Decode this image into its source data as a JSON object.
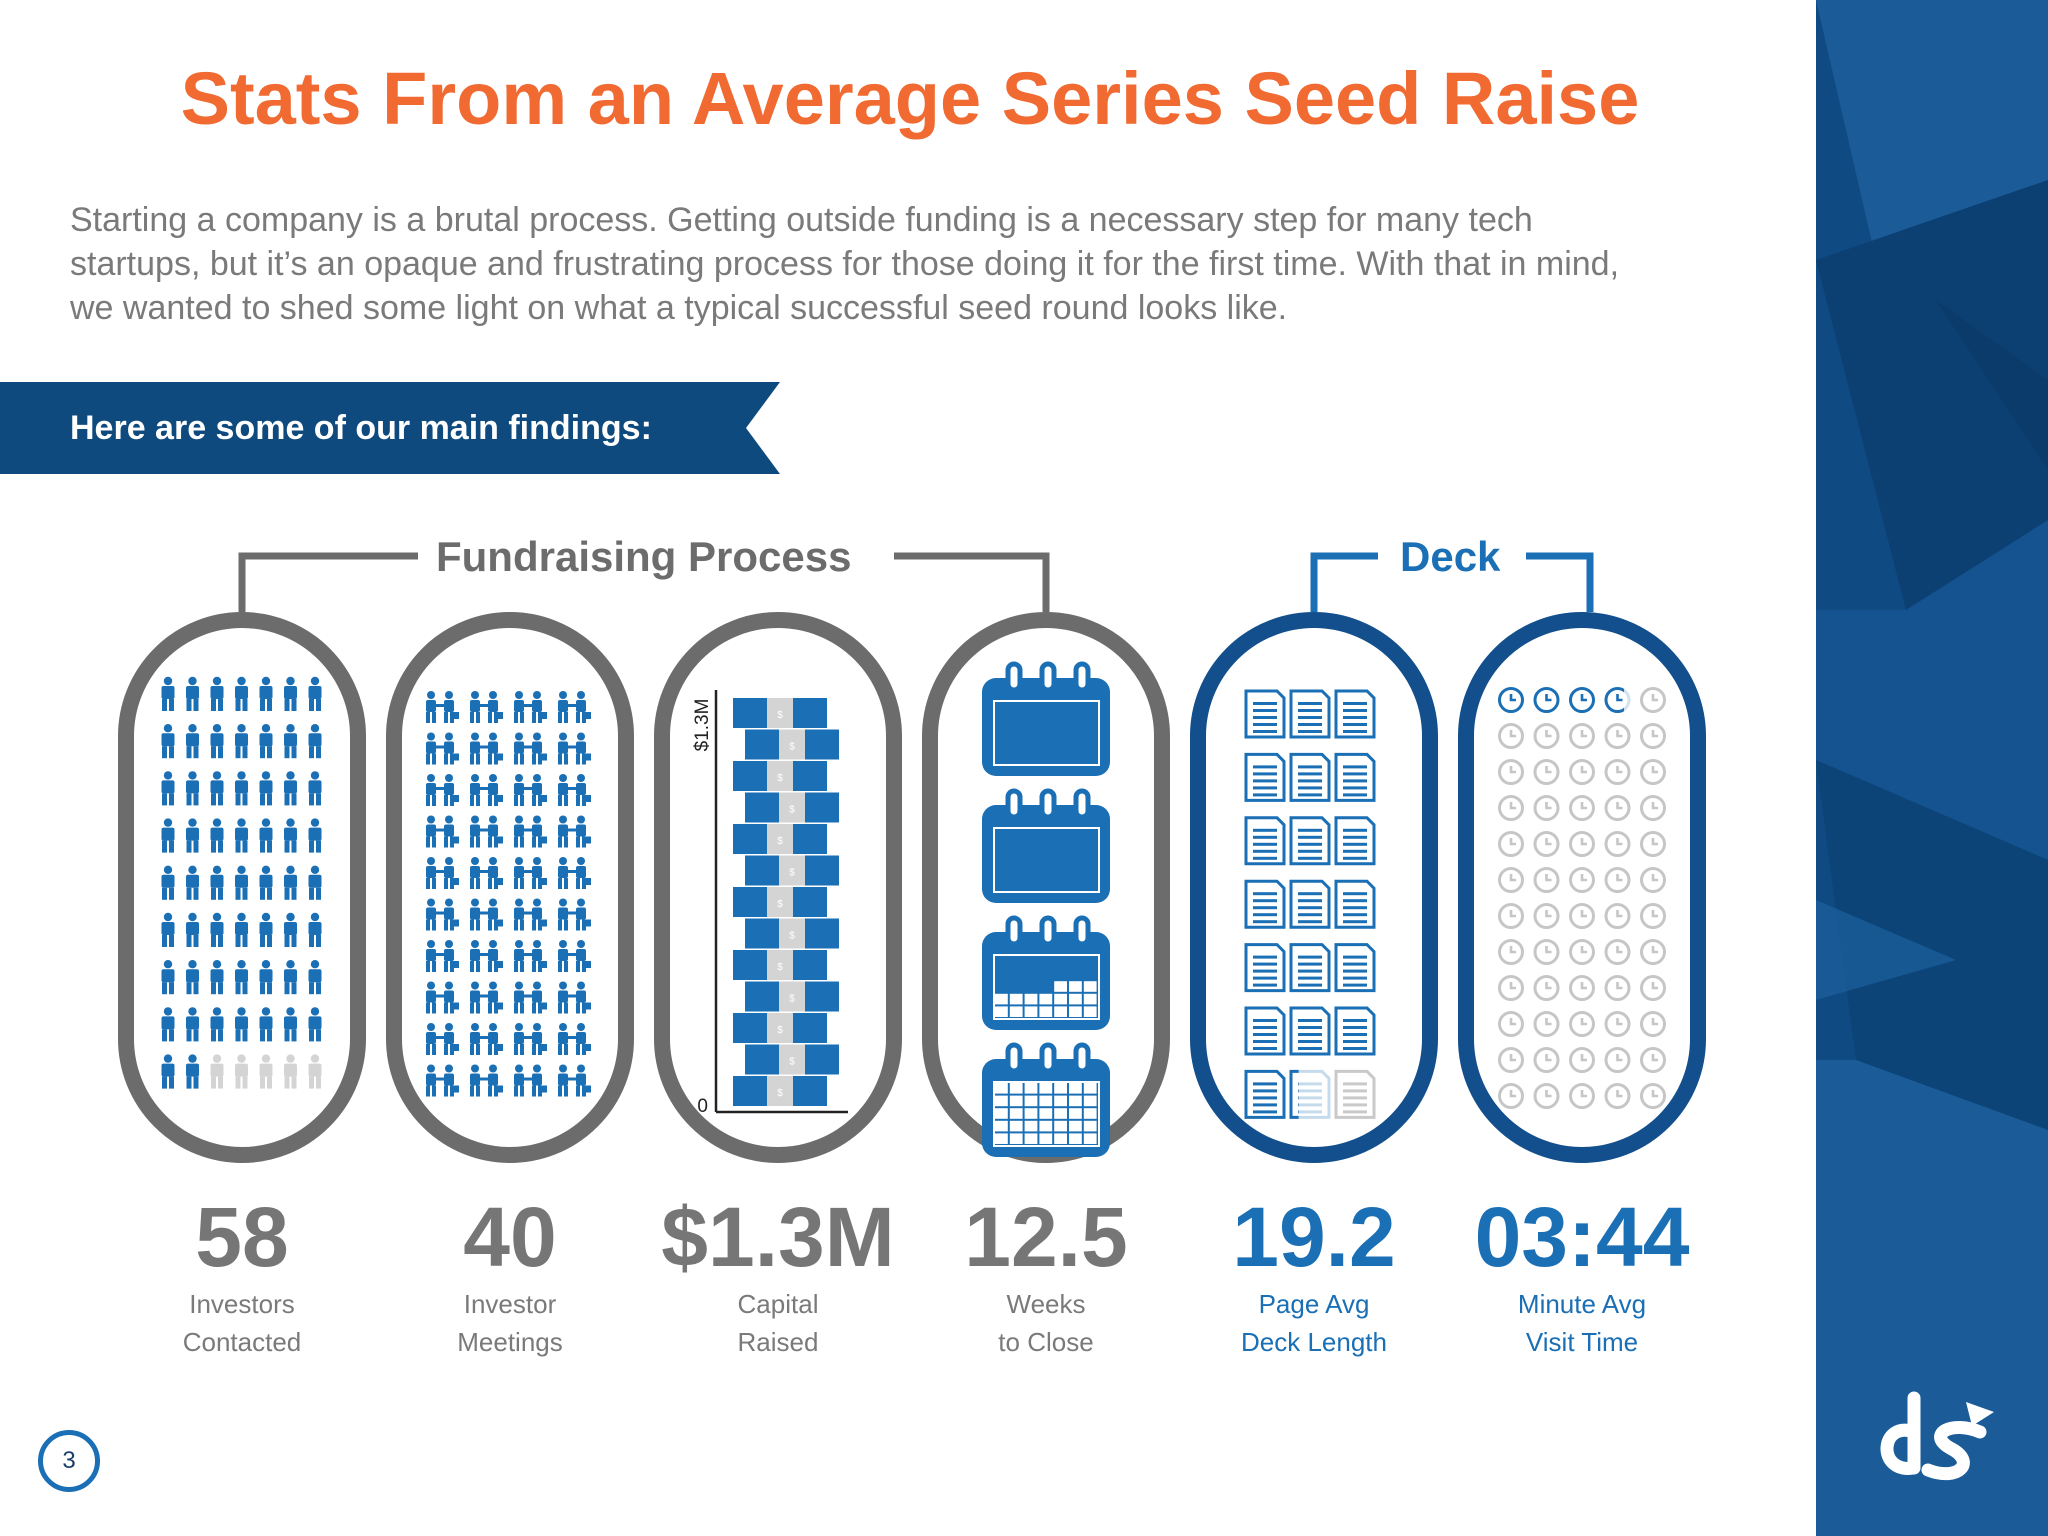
{
  "header": {
    "title": "Stats From an Average Series Seed Raise",
    "intro_line1": "Starting a company is a brutal process. Getting outside funding is a necessary step for many tech",
    "intro_line2": "startups, but it’s an opaque and frustrating process for those doing it for the first time. With that in mind,",
    "intro_line3": "we wanted to shed some light on what a typical successful seed round looks like."
  },
  "banner": {
    "label": "Here are some of our main findings:"
  },
  "groups": {
    "fundraising": "Fundraising Process",
    "deck": "Deck"
  },
  "stats": [
    {
      "value": "58",
      "label1": "Investors",
      "label2": "Contacted"
    },
    {
      "value": "40",
      "label1": "Investor",
      "label2": "Meetings"
    },
    {
      "value": "$1.3M",
      "label1": "Capital",
      "label2": "Raised"
    },
    {
      "value": "12.5",
      "label1": "Weeks",
      "label2": "to Close"
    },
    {
      "value": "19.2",
      "label1": "Page Avg",
      "label2": "Deck Length"
    },
    {
      "value": "03:44",
      "label1": "Minute Avg",
      "label2": "Visit Time"
    }
  ],
  "capital_axis": {
    "top_label": "$1.3M",
    "bottom_label": "0",
    "coin_symbol": "$"
  },
  "page_number": "3",
  "colors": {
    "orange": "#f06a32",
    "blue": "#1a6fb5",
    "grey": "#6c6c6c",
    "navy": "#0f4a7e",
    "light_grey": "#d4d4d4"
  },
  "icons": [
    "investor-person-icon",
    "handshake-icon",
    "coin-stack-icon",
    "calendar-icon",
    "document-page-icon",
    "clock-icon",
    "ds-logo"
  ]
}
